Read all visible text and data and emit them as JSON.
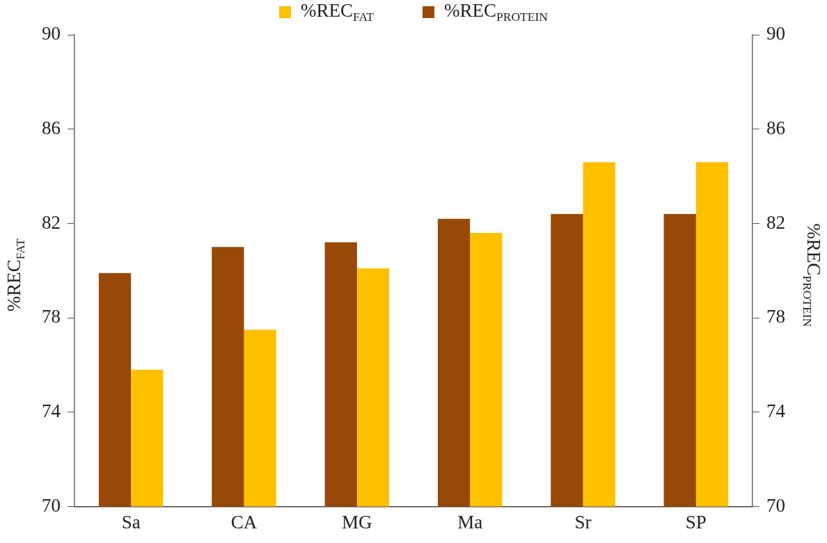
{
  "chart_data": {
    "type": "bar",
    "categories": [
      "Sa",
      "CA",
      "MG",
      "Ma",
      "Sr",
      "SP"
    ],
    "series": [
      {
        "name": "%REC$_{PROTEIN}$",
        "color": "#984807",
        "axis": "y2",
        "values": [
          79.9,
          81.0,
          81.2,
          82.2,
          82.4,
          82.4
        ]
      },
      {
        "name": "%REC$_{FAT}$",
        "color": "#ffc000",
        "values": [
          75.8,
          77.5,
          80.1,
          81.6,
          84.6,
          84.6
        ]
      }
    ],
    "ylabel": "%REC$_{FAT}$",
    "y2label": "%REC$_{PROTEIN}$",
    "ylim": [
      70,
      90
    ],
    "yticks": [
      70,
      74,
      78,
      82,
      86,
      90
    ],
    "y2lim": [
      70,
      90
    ],
    "y2ticks": [
      70,
      74,
      78,
      82,
      86,
      90
    ],
    "legend": "top",
    "grid": false
  }
}
